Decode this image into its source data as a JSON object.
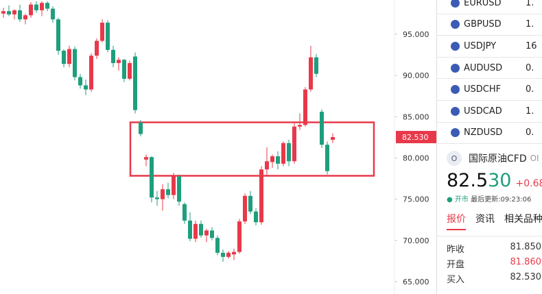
{
  "chart": {
    "ylim": [
      63.5,
      99.15
    ],
    "yticks": [
      {
        "value": 95,
        "label": "95.000"
      },
      {
        "value": 90,
        "label": "90.000"
      },
      {
        "value": 85,
        "label": "85.000"
      },
      {
        "value": 80,
        "label": "80.000"
      },
      {
        "value": 75,
        "label": "75.000"
      },
      {
        "value": 70,
        "label": "70.000"
      },
      {
        "value": 65,
        "label": "65.000"
      }
    ],
    "last_price": {
      "value": 82.53,
      "label": "82.530"
    },
    "up_color": "#e8394a",
    "down_color": "#1e9e7c",
    "candles": [
      [
        97.5,
        98.2,
        97.0,
        97.8
      ],
      [
        97.8,
        98.5,
        97.2,
        97.4
      ],
      [
        97.4,
        98.0,
        96.8,
        97.9
      ],
      [
        97.9,
        98.6,
        96.5,
        96.8
      ],
      [
        96.8,
        97.5,
        96.2,
        97.3
      ],
      [
        97.3,
        98.9,
        97.0,
        98.6
      ],
      [
        98.6,
        99.0,
        97.6,
        97.9
      ],
      [
        97.9,
        99.0,
        97.2,
        98.8
      ],
      [
        98.8,
        99.0,
        97.8,
        98.1
      ],
      [
        98.1,
        98.4,
        96.4,
        96.8
      ],
      [
        96.8,
        97.0,
        92.5,
        93.0
      ],
      [
        93.0,
        93.2,
        91.0,
        91.4
      ],
      [
        91.4,
        93.6,
        91.0,
        93.2
      ],
      [
        93.2,
        93.5,
        89.4,
        89.8
      ],
      [
        89.8,
        90.2,
        88.4,
        88.8
      ],
      [
        88.8,
        89.5,
        87.6,
        88.3
      ],
      [
        88.3,
        92.7,
        88.0,
        92.4
      ],
      [
        92.4,
        94.5,
        92.0,
        94.2
      ],
      [
        94.2,
        96.8,
        94.0,
        96.4
      ],
      [
        96.4,
        96.7,
        92.8,
        93.1
      ],
      [
        93.1,
        93.6,
        91.0,
        91.5
      ],
      [
        91.5,
        92.2,
        90.6,
        91.9
      ],
      [
        91.9,
        92.0,
        89.2,
        89.6
      ],
      [
        89.6,
        91.8,
        89.4,
        91.5
      ],
      [
        92.3,
        92.8,
        85.4,
        85.8
      ],
      [
        84.3,
        84.6,
        82.6,
        82.9
      ],
      [
        79.8,
        80.4,
        79.0,
        80.1
      ],
      [
        80.1,
        80.2,
        74.6,
        75.2
      ],
      [
        75.2,
        76.0,
        74.2,
        75.0
      ],
      [
        75.0,
        76.8,
        73.6,
        76.2
      ],
      [
        76.2,
        77.0,
        75.1,
        75.5
      ],
      [
        75.5,
        78.2,
        75.0,
        77.8
      ],
      [
        77.8,
        78.0,
        74.2,
        74.7
      ],
      [
        74.4,
        74.6,
        72.0,
        72.4
      ],
      [
        72.4,
        73.4,
        69.9,
        70.2
      ],
      [
        70.2,
        72.4,
        69.8,
        72.0
      ],
      [
        72.0,
        72.4,
        70.3,
        70.6
      ],
      [
        70.6,
        71.4,
        69.8,
        71.2
      ],
      [
        71.2,
        71.6,
        70.0,
        70.3
      ],
      [
        70.3,
        70.6,
        68.2,
        68.5
      ],
      [
        68.5,
        68.9,
        67.4,
        68.0
      ],
      [
        68.0,
        68.7,
        67.8,
        68.5
      ],
      [
        68.3,
        69.0,
        67.6,
        68.6
      ],
      [
        68.6,
        72.6,
        68.4,
        72.3
      ],
      [
        72.3,
        75.7,
        72.0,
        75.4
      ],
      [
        75.4,
        76.0,
        73.2,
        73.5
      ],
      [
        73.5,
        73.9,
        71.8,
        72.2
      ],
      [
        72.2,
        79.0,
        71.9,
        78.6
      ],
      [
        78.6,
        81.3,
        77.8,
        79.6
      ],
      [
        79.5,
        80.4,
        78.8,
        80.2
      ],
      [
        80.2,
        80.8,
        78.6,
        79.3
      ],
      [
        79.3,
        82.0,
        79.0,
        81.8
      ],
      [
        81.8,
        82.2,
        79.0,
        79.6
      ],
      [
        79.6,
        84.2,
        79.3,
        83.8
      ],
      [
        83.8,
        85.4,
        83.4,
        84.0
      ],
      [
        84.0,
        88.6,
        83.8,
        88.3
      ],
      [
        88.3,
        93.6,
        88.0,
        92.2
      ],
      [
        92.2,
        92.6,
        89.8,
        90.2
      ],
      [
        85.6,
        85.9,
        81.2,
        81.6
      ],
      [
        81.6,
        82.0,
        78.0,
        78.4
      ],
      [
        82.2,
        83.0,
        81.8,
        82.53
      ]
    ]
  },
  "watchlist": [
    {
      "symbol": "EURUSD",
      "price": "1."
    },
    {
      "symbol": "GBPUSD",
      "price": "1."
    },
    {
      "symbol": "USDJPY",
      "price": "16"
    },
    {
      "symbol": "AUDUSD",
      "price": "0."
    },
    {
      "symbol": "USDCHF",
      "price": "0."
    },
    {
      "symbol": "USDCAD",
      "price": "1."
    },
    {
      "symbol": "NZDUSD",
      "price": "0."
    }
  ],
  "quote": {
    "icon": "O",
    "name": "国际原油CFD",
    "code": "OI",
    "price_main": "82.5",
    "price_tail": "30",
    "change": "+0.680",
    "status": "开市",
    "updated": "最后更新:09:23:06",
    "tabs": [
      "报价",
      "资讯",
      "相关品种"
    ],
    "stats": [
      {
        "label": "昨收",
        "value": "81.850"
      },
      {
        "label": "开盘",
        "value": "81.860"
      },
      {
        "label": "买入",
        "value": "82.530"
      }
    ]
  }
}
